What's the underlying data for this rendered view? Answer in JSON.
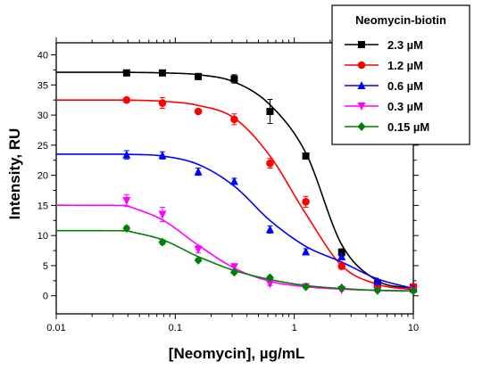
{
  "chart_data": {
    "type": "scatter",
    "xlabel": "[Neomycin], µg/mL",
    "ylabel": "Intensity, RU",
    "x_scale": "log",
    "xlim": [
      0.01,
      10
    ],
    "ylim": [
      -3,
      42
    ],
    "x_tick_labels": [
      "0.01",
      "0.1",
      "1",
      "10"
    ],
    "y_ticks": [
      0,
      5,
      10,
      15,
      20,
      25,
      30,
      35,
      40
    ],
    "y_tick_labels": [
      "0",
      "5",
      "10",
      "15",
      "20",
      "25",
      "30",
      "35",
      "40"
    ],
    "grid": false,
    "legend": {
      "title": "Neomycin-biotin",
      "placement": "top-right"
    },
    "x": [
      0.039,
      0.078,
      0.156,
      0.313,
      0.625,
      1.25,
      2.5,
      5,
      10
    ],
    "series": [
      {
        "name": "2.3 µM",
        "color": "#000000",
        "marker": "square",
        "line_color": "#000000",
        "values": [
          37.0,
          37.0,
          36.4,
          36.0,
          30.6,
          23.2,
          7.2,
          2.0,
          1.4
        ],
        "errors": [
          0.3,
          0.3,
          0.5,
          0.7,
          2.0,
          0.4,
          0.6,
          0.3,
          0.2
        ],
        "fit": [
          37.1,
          37.0,
          36.7,
          35.5,
          31.7,
          23.7,
          8.5,
          2.5,
          1.2
        ]
      },
      {
        "name": "1.2 µM",
        "color": "#ff0000",
        "marker": "circle",
        "line_color": "#ff0000",
        "values": [
          32.5,
          32.0,
          30.6,
          29.3,
          22.0,
          15.6,
          4.9,
          1.4,
          1.5
        ],
        "errors": [
          0.4,
          0.9,
          0.4,
          0.9,
          0.8,
          0.9,
          0.5,
          0.3,
          0.2
        ],
        "fit": [
          32.5,
          32.3,
          31.6,
          29.5,
          23.2,
          13.6,
          5.0,
          1.9,
          1.0
        ]
      },
      {
        "name": "0.6 µM",
        "color": "#0000ff",
        "marker": "triangle-up",
        "line_color": "#0000ff",
        "values": [
          23.4,
          23.3,
          20.6,
          19.0,
          11.0,
          7.3,
          6.5,
          2.4,
          1.1
        ],
        "errors": [
          0.7,
          0.6,
          0.6,
          0.5,
          0.6,
          0.5,
          0.4,
          0.3,
          0.2
        ],
        "fit": [
          23.5,
          23.2,
          21.8,
          18.2,
          12.5,
          8.2,
          5.6,
          2.8,
          1.2
        ]
      },
      {
        "name": "0.3 µM",
        "color": "#ff00ff",
        "marker": "triangle-down",
        "line_color": "#ff00ff",
        "values": [
          15.8,
          13.5,
          7.7,
          4.8,
          2.0,
          1.5,
          1.0,
          0.8,
          0.8
        ],
        "errors": [
          1.0,
          1.2,
          0.6,
          0.5,
          0.3,
          0.3,
          0.2,
          0.2,
          0.2
        ],
        "fit": [
          15.0,
          12.6,
          8.4,
          4.6,
          2.4,
          1.5,
          1.1,
          0.9,
          0.8
        ]
      },
      {
        "name": "0.15 µM",
        "color": "#008000",
        "marker": "diamond",
        "line_color": "#008000",
        "values": [
          11.2,
          8.9,
          5.9,
          3.9,
          3.0,
          1.5,
          1.3,
          0.9,
          0.8
        ],
        "errors": [
          0.4,
          0.4,
          0.3,
          0.3,
          0.3,
          0.2,
          0.2,
          0.2,
          0.2
        ],
        "fit": [
          10.8,
          9.3,
          6.5,
          4.2,
          2.7,
          1.7,
          1.2,
          0.9,
          0.8
        ]
      }
    ]
  }
}
